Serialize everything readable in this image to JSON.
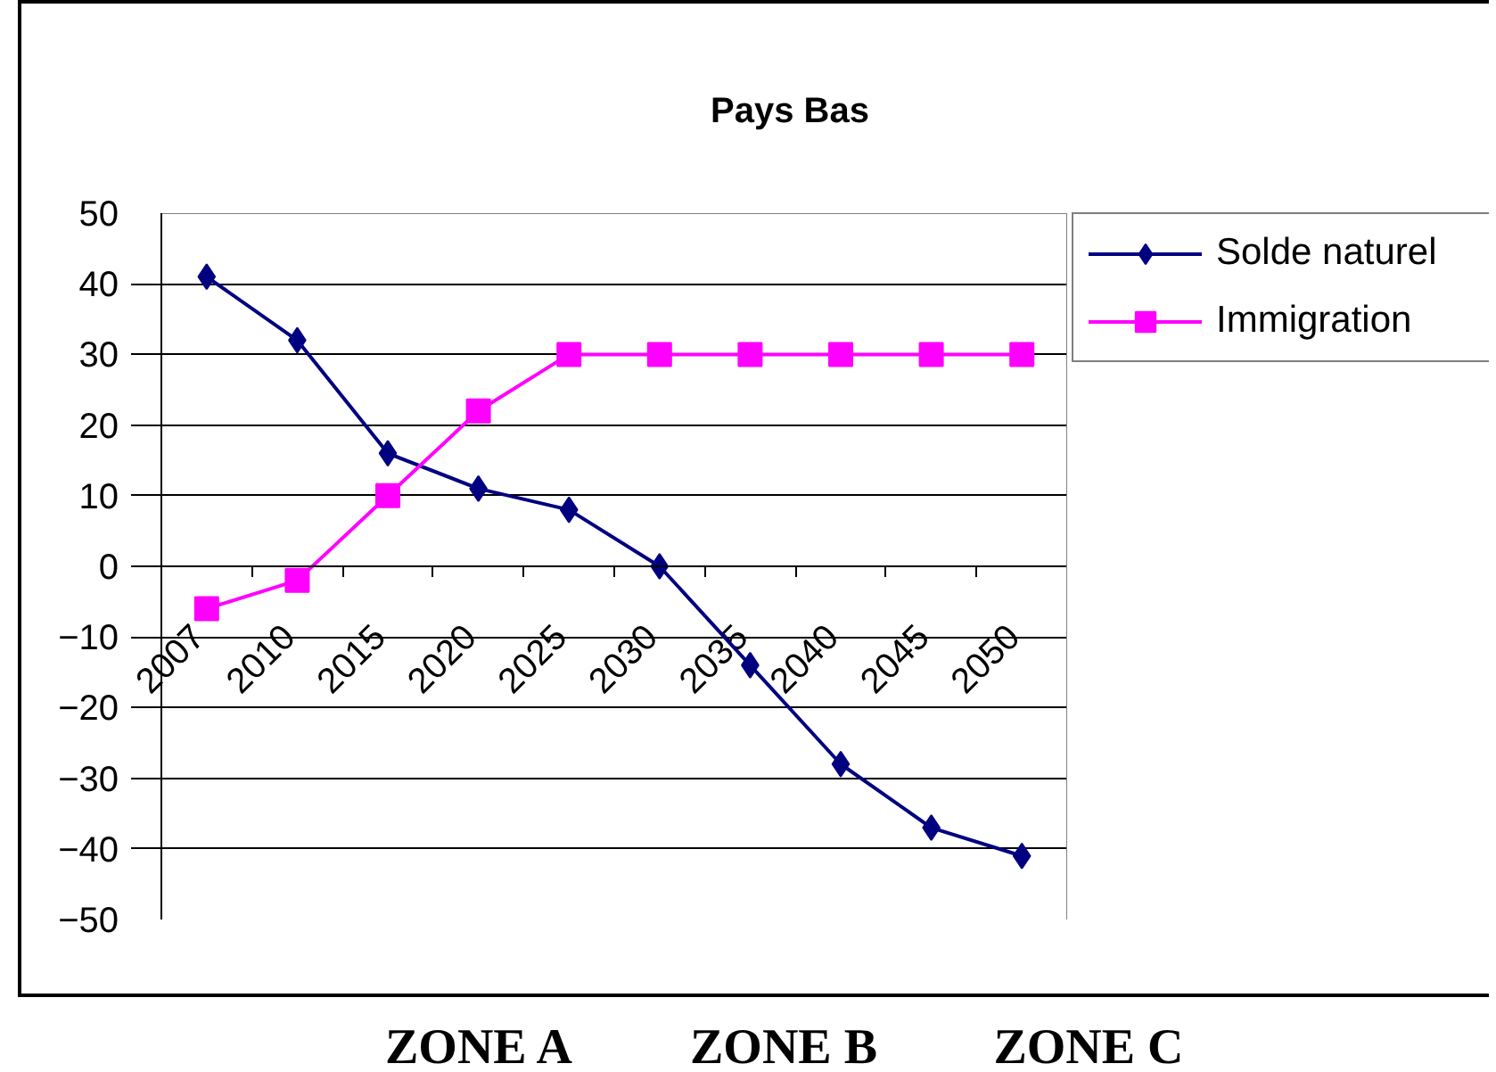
{
  "chart_data": {
    "type": "line",
    "title": "Pays Bas",
    "categories": [
      "2007",
      "2010",
      "2015",
      "2020",
      "2025",
      "2030",
      "2035",
      "2040",
      "2045",
      "2050"
    ],
    "series": [
      {
        "name": "Solde naturel",
        "color": "#000080",
        "marker": "diamond",
        "values": [
          41,
          32,
          16,
          11,
          8,
          0,
          -14,
          -28,
          -37,
          -41
        ]
      },
      {
        "name": "Immigration",
        "color": "#ff00ff",
        "marker": "square",
        "values": [
          -6,
          -2,
          10,
          22,
          30,
          30,
          30,
          30,
          30,
          30
        ]
      }
    ],
    "ylim": [
      -50,
      50
    ],
    "yticks": [
      -50,
      -40,
      -30,
      -20,
      -10,
      0,
      10,
      20,
      30,
      40,
      50
    ],
    "grid": "y",
    "legend": "top right",
    "line_style": "solid",
    "annotations": [
      "ZONE A",
      "ZONE B",
      "ZONE C"
    ]
  }
}
